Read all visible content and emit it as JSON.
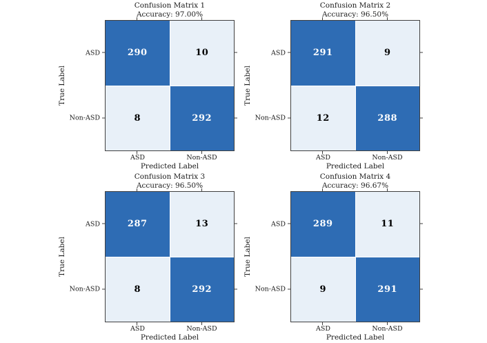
{
  "colors": {
    "background": "#ffffff",
    "dark_cell": "#2e6cb4",
    "light_cell": "#e8f0f8",
    "axis": "#3f3f3f",
    "text": "#1a1a1a",
    "value_on_dark": "#ffffff",
    "value_on_light": "#000000"
  },
  "chart_data": [
    {
      "type": "heatmap",
      "title": "Confusion Matrix 1",
      "subtitle": "Accuracy: 97.00%",
      "xlabel": "Predicted Label",
      "ylabel": "True Label",
      "x_categories": [
        "ASD",
        "Non-ASD"
      ],
      "y_categories": [
        "ASD",
        "Non-ASD"
      ],
      "values": [
        [
          290,
          10
        ],
        [
          8,
          292
        ]
      ],
      "legend": "none",
      "grid": false
    },
    {
      "type": "heatmap",
      "title": "Confusion Matrix 2",
      "subtitle": "Accuracy: 96.50%",
      "xlabel": "Predicted Label",
      "ylabel": "True Label",
      "x_categories": [
        "ASD",
        "Non-ASD"
      ],
      "y_categories": [
        "ASD",
        "Non-ASD"
      ],
      "values": [
        [
          291,
          9
        ],
        [
          12,
          288
        ]
      ],
      "legend": "none",
      "grid": false
    },
    {
      "type": "heatmap",
      "title": "Confusion Matrix 3",
      "subtitle": "Accuracy: 96.50%",
      "xlabel": "Predicted Label",
      "ylabel": "True Label",
      "x_categories": [
        "ASD",
        "Non-ASD"
      ],
      "y_categories": [
        "ASD",
        "Non-ASD"
      ],
      "values": [
        [
          287,
          13
        ],
        [
          8,
          292
        ]
      ],
      "legend": "none",
      "grid": false
    },
    {
      "type": "heatmap",
      "title": "Confusion Matrix 4",
      "subtitle": "Accuracy: 96.67%",
      "xlabel": "Predicted Label",
      "ylabel": "True Label",
      "x_categories": [
        "ASD",
        "Non-ASD"
      ],
      "y_categories": [
        "ASD",
        "Non-ASD"
      ],
      "values": [
        [
          289,
          11
        ],
        [
          9,
          291
        ]
      ],
      "legend": "none",
      "grid": false
    }
  ]
}
